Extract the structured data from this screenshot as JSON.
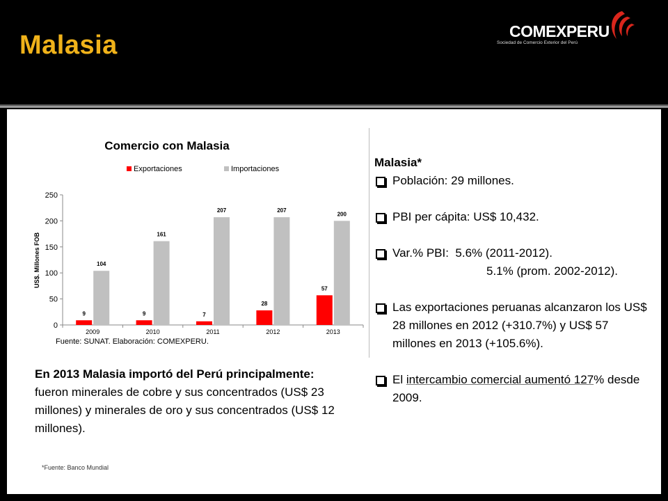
{
  "header": {
    "title": "Malasia",
    "logo_name": "COMEXPERU",
    "logo_subtitle": "Sociedad de Comercio Exterior del Perú"
  },
  "chart_data": {
    "type": "bar",
    "title": "Comercio con Malasia",
    "categories": [
      "2009",
      "2010",
      "2011",
      "2012",
      "2013"
    ],
    "series": [
      {
        "name": "Exportaciones",
        "values": [
          9,
          9,
          7,
          28,
          57
        ],
        "color": "#ff0000"
      },
      {
        "name": "Importaciones",
        "values": [
          104,
          161,
          207,
          207,
          200
        ],
        "color": "#c0c0c0"
      }
    ],
    "ylabel": "US$. Millones FOB",
    "ylim": [
      0,
      250
    ],
    "yticks": [
      0,
      50,
      100,
      150,
      200,
      250
    ],
    "legend": "top",
    "grid": false,
    "source": "Fuente: SUNAT. Elaboración: COMEXPERU."
  },
  "left_text": {
    "bold_line": "En 2013 Malasia importó del Perú principalmente:",
    "body": "fueron minerales de cobre y sus concentrados (US$ 23 millones) y minerales de oro y sus concentrados (US$ 12 millones)."
  },
  "footnote": "*Fuente: Banco Mundial",
  "right_text": {
    "heading": "Malasia*",
    "poblacion": "Población: 29 millones.",
    "pbi": "PBI per cápita: US$ 10,432.",
    "var_line1": "Var.% PBI:  5.6% (2011-2012).",
    "var_line2": "5.1% (prom. 2002-2012).",
    "exports": "Las exportaciones peruanas alcanzaron los US$ 28 millones en 2012 (+310.7%) y US$ 57 millones en 2013 (+105.6%).",
    "intercambio_pre": "El ",
    "intercambio_highlight": "intercambio comercial aumentó 127",
    "intercambio_post": "% desde 2009."
  },
  "colors": {
    "title": "#f0b21a",
    "export_bar": "#ff0000",
    "import_bar": "#c0c0c0",
    "logo_red": "#d9261c"
  }
}
